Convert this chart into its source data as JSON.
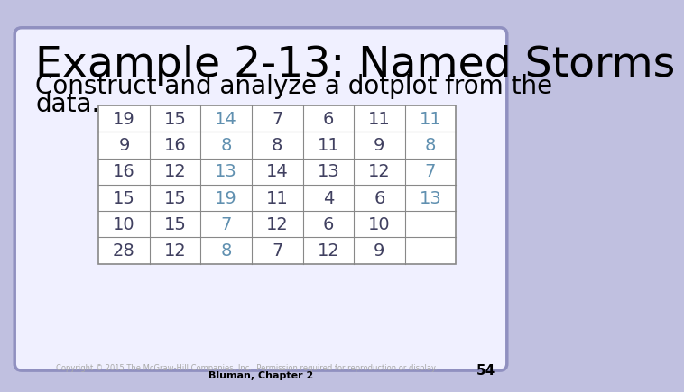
{
  "title": "Example 2-13: Named Storms",
  "subtitle_line1": "Construct and analyze a dotplot from the",
  "subtitle_line2": "data.",
  "title_fontsize": 34,
  "subtitle_fontsize": 20,
  "table_data": [
    [
      19,
      15,
      14,
      7,
      6,
      11,
      11
    ],
    [
      9,
      16,
      8,
      8,
      11,
      9,
      8
    ],
    [
      16,
      12,
      13,
      14,
      13,
      12,
      7
    ],
    [
      15,
      15,
      19,
      11,
      4,
      6,
      13
    ],
    [
      10,
      15,
      7,
      12,
      6,
      10,
      ""
    ],
    [
      28,
      12,
      8,
      7,
      12,
      9,
      ""
    ]
  ],
  "n_cols": 7,
  "n_rows": 6,
  "background_color": "#c0c0e0",
  "card_color": "#f0f0ff",
  "table_bg_color": "#ffffff",
  "regular_text_color": "#404060",
  "highlight_text_color": "#6090b0",
  "title_color": "#000000",
  "subtitle_color": "#000000",
  "footer_text": "Copyright © 2015 The McGraw-Hill Companies, Inc.  Permission required for reproduction or display.",
  "footer_text2": "Bluman, Chapter 2",
  "page_number": "54",
  "highlight_cols": [
    2,
    6
  ],
  "table_border_color": "#888888",
  "table_text_fontsize": 14
}
